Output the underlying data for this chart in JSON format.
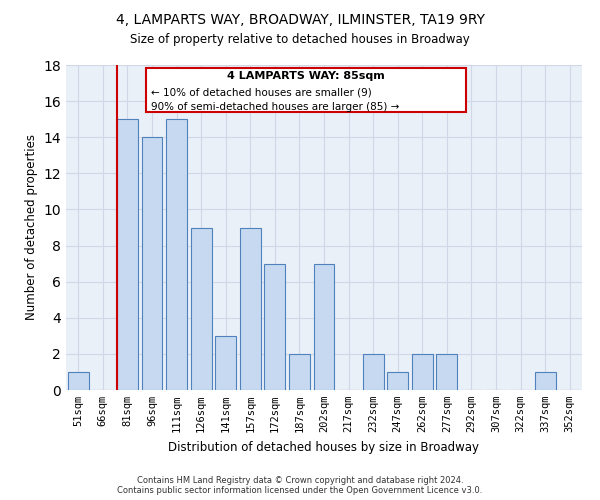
{
  "title": "4, LAMPARTS WAY, BROADWAY, ILMINSTER, TA19 9RY",
  "subtitle": "Size of property relative to detached houses in Broadway",
  "xlabel": "Distribution of detached houses by size in Broadway",
  "ylabel": "Number of detached properties",
  "bin_labels": [
    "51sqm",
    "66sqm",
    "81sqm",
    "96sqm",
    "111sqm",
    "126sqm",
    "141sqm",
    "157sqm",
    "172sqm",
    "187sqm",
    "202sqm",
    "217sqm",
    "232sqm",
    "247sqm",
    "262sqm",
    "277sqm",
    "292sqm",
    "307sqm",
    "322sqm",
    "337sqm",
    "352sqm"
  ],
  "bar_heights": [
    1,
    0,
    15,
    14,
    15,
    9,
    3,
    9,
    7,
    2,
    7,
    0,
    2,
    1,
    2,
    2,
    0,
    0,
    0,
    1,
    0
  ],
  "bar_color": "#c6d9f0",
  "bar_edge_color": "#4f81bd",
  "vline_bin_index": 2,
  "vline_color": "#cc0000",
  "ylim": [
    0,
    18
  ],
  "yticks": [
    0,
    2,
    4,
    6,
    8,
    10,
    12,
    14,
    16,
    18
  ],
  "annotation_title": "4 LAMPARTS WAY: 85sqm",
  "annotation_line1": "← 10% of detached houses are smaller (9)",
  "annotation_line2": "90% of semi-detached houses are larger (85) →",
  "annotation_box_color": "#ffffff",
  "annotation_box_edge": "#cc0000",
  "footer_line1": "Contains HM Land Registry data © Crown copyright and database right 2024.",
  "footer_line2": "Contains public sector information licensed under the Open Government Licence v3.0.",
  "grid_color": "#d0d8e8",
  "background_color": "#eaf0f8"
}
